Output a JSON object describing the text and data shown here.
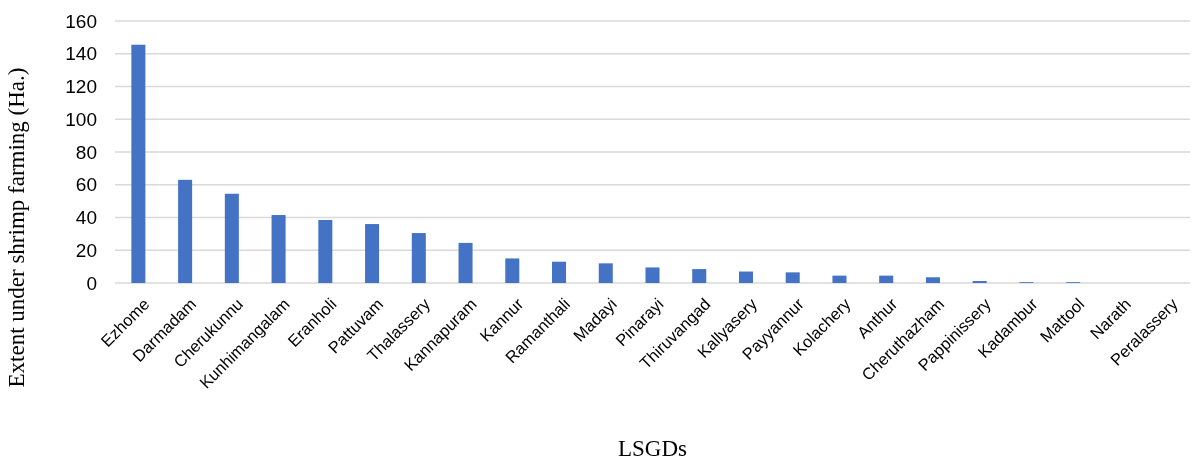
{
  "chart_data": {
    "type": "bar",
    "xlabel": "LSGDs",
    "ylabel": "Extent under shrimp farming  (Ha.)",
    "categories": [
      "Ezhome",
      "Darmadam",
      "Cherukunnu",
      "Kunhimangalam",
      "Eranholi",
      "Pattuvam",
      "Thalassery",
      "Kannapuram",
      "Kannur",
      "Ramanthali",
      "Madayi",
      "Pinarayi",
      "Thiruvangad",
      "Kallyasery",
      "Payyannur",
      "Kolachery",
      "Anthur",
      "Cheruthazham",
      "Pappinissery",
      "Kadambur",
      "Mattool",
      "Narath",
      "Peralassery"
    ],
    "values": [
      145.5,
      63,
      54.5,
      41.5,
      38.5,
      36,
      30.5,
      24.5,
      15,
      13,
      12,
      9.5,
      8.5,
      7,
      6.5,
      4.5,
      4.5,
      3.5,
      1.2,
      0.5,
      0.5,
      0,
      0
    ],
    "color": "#4472c4",
    "ylim": [
      0,
      160
    ],
    "yticks": [
      0,
      20,
      40,
      60,
      80,
      100,
      120,
      140,
      160
    ],
    "grid": "y"
  }
}
